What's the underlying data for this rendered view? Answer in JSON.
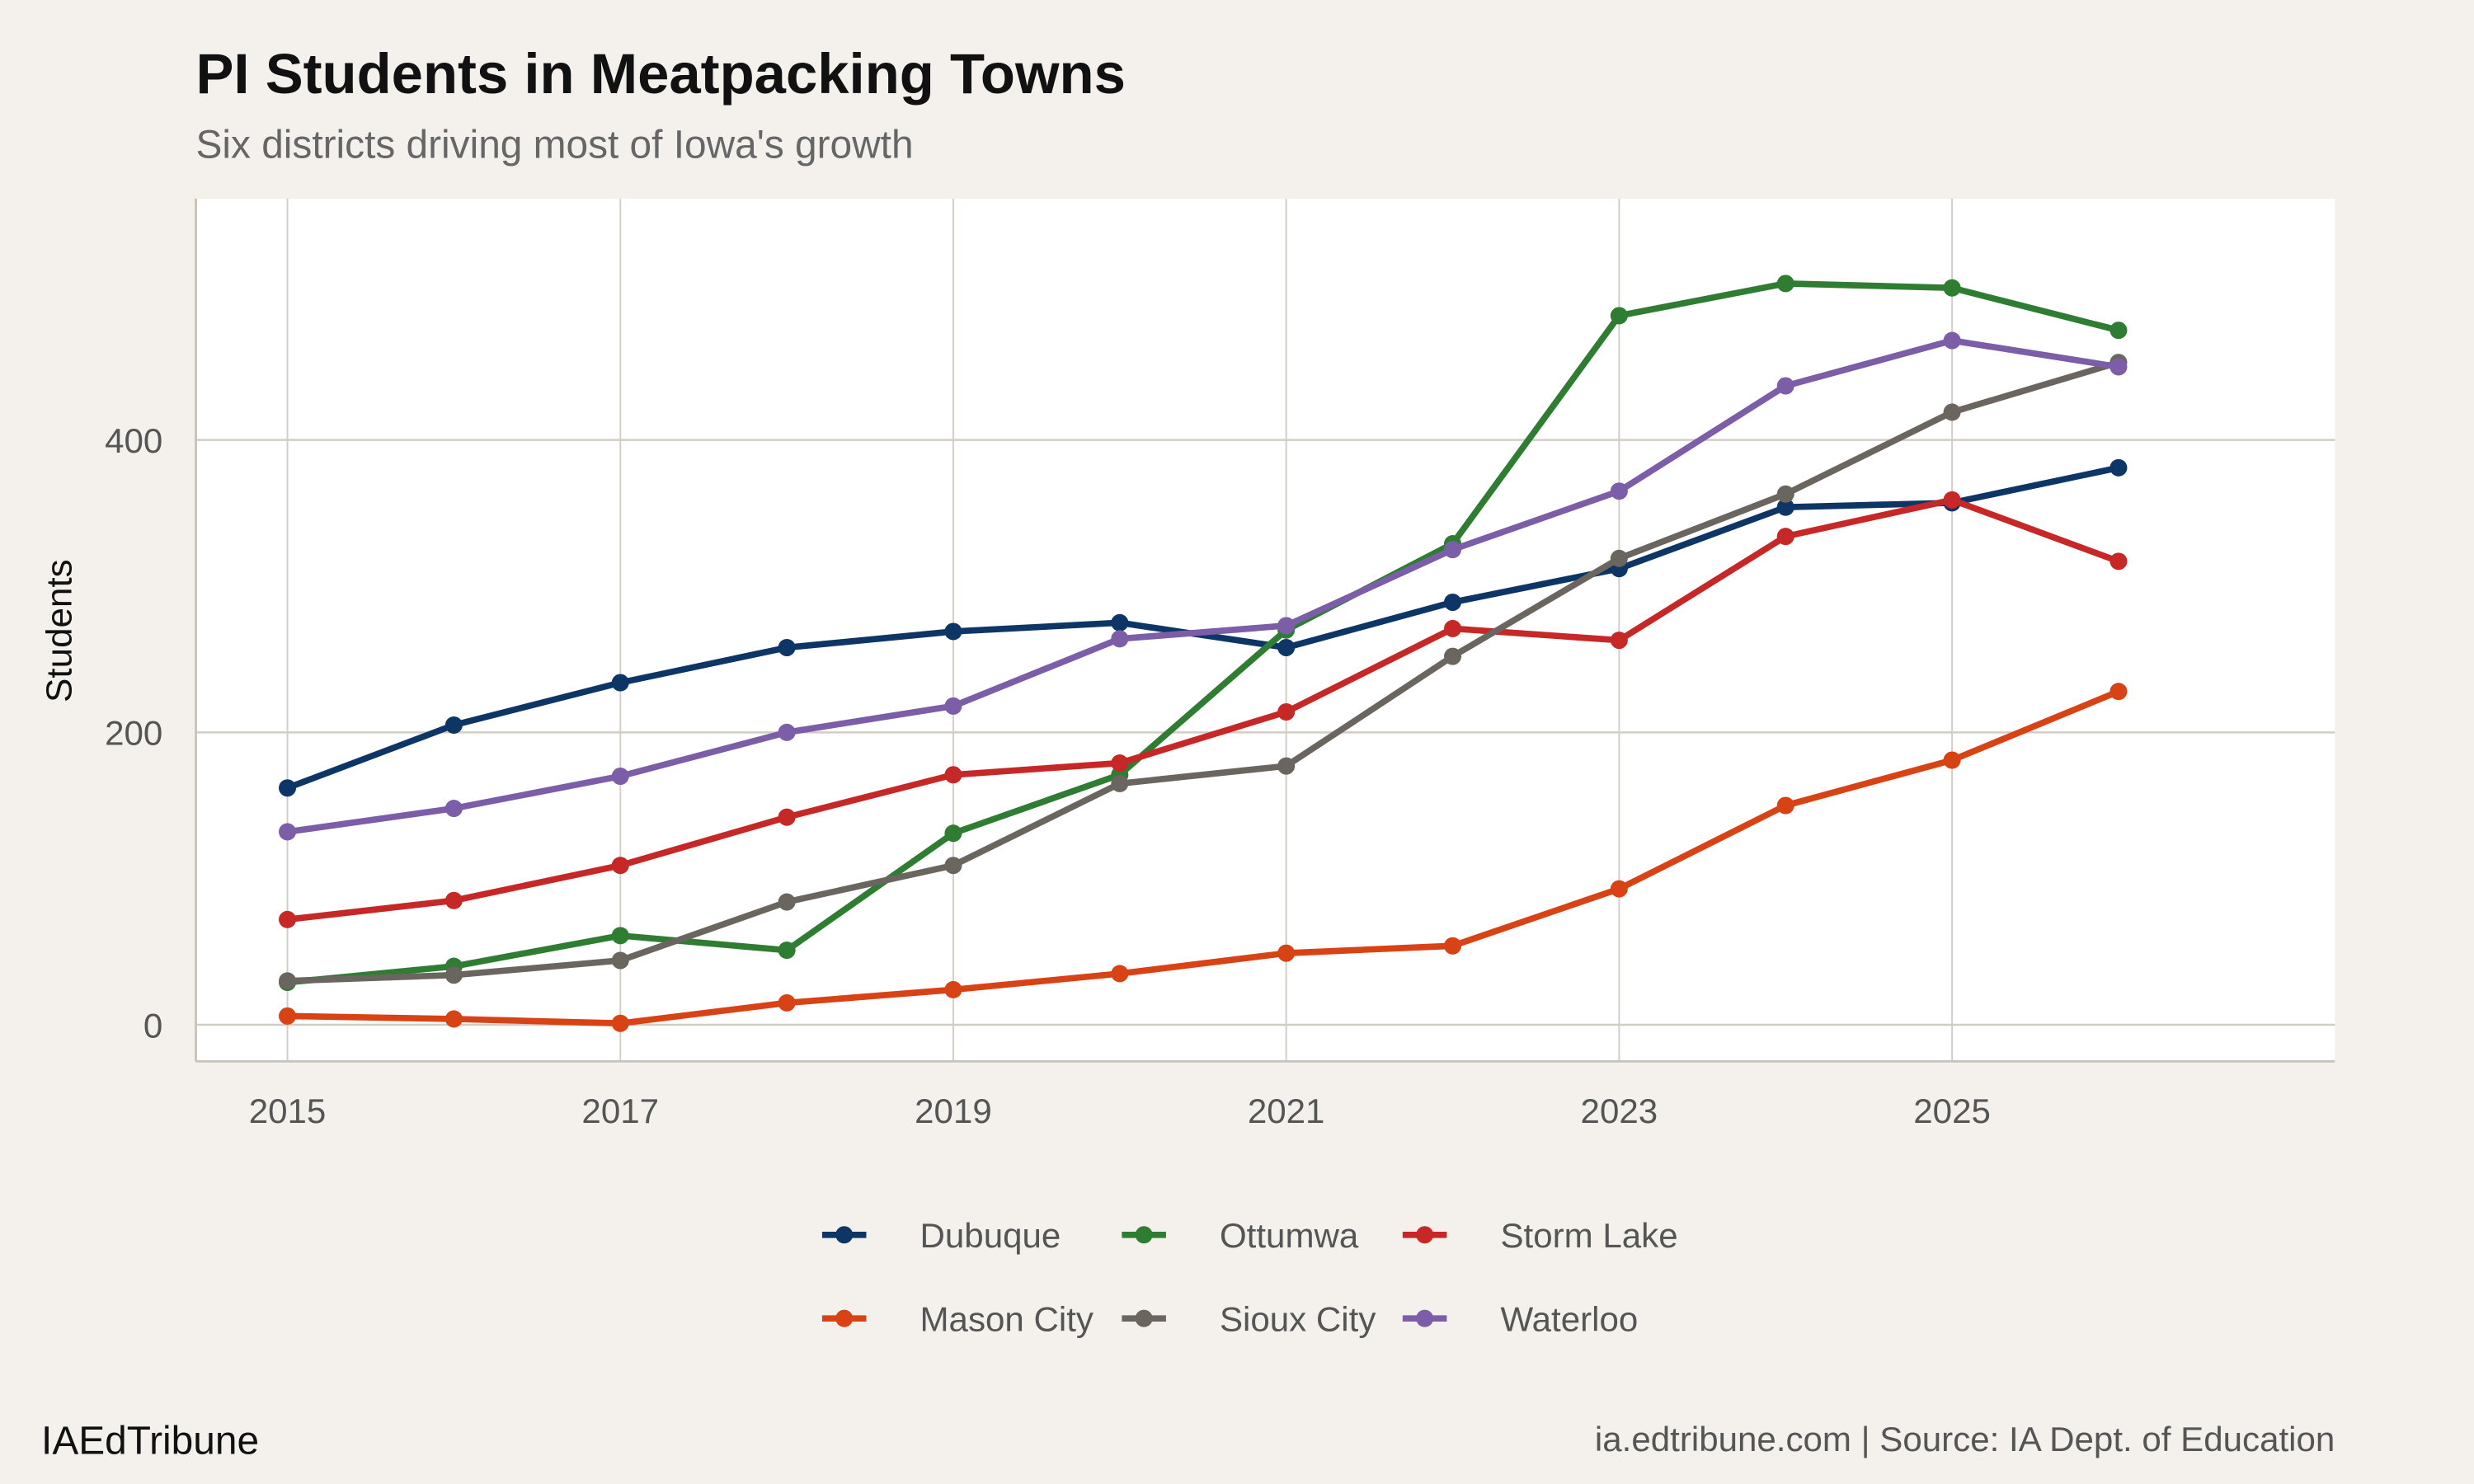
{
  "chart_data": {
    "type": "line",
    "title": "PI Students in Meatpacking Towns",
    "subtitle": "Six districts driving most of Iowa's growth",
    "xlabel": "",
    "ylabel": "Students",
    "x": [
      2015,
      2016,
      2017,
      2018,
      2019,
      2020,
      2021,
      2022,
      2023,
      2024,
      2025,
      2026
    ],
    "x_ticks": [
      "2015",
      "2017",
      "2019",
      "2021",
      "2023",
      "2025"
    ],
    "y_ticks": [
      "0",
      "200",
      "400"
    ],
    "xlim": [
      2014.45,
      2027.3
    ],
    "ylim": [
      -25,
      565
    ],
    "grid": true,
    "legend_position": "bottom",
    "series": [
      {
        "name": "Dubuque",
        "color": "#0d3566",
        "values": [
          162,
          205,
          234,
          258,
          269,
          275,
          258,
          289,
          312,
          354,
          357,
          381
        ]
      },
      {
        "name": "Ottumwa",
        "color": "#2e7d32",
        "values": [
          29,
          40,
          61,
          51,
          131,
          171,
          270,
          329,
          485,
          507,
          504,
          475
        ]
      },
      {
        "name": "Storm Lake",
        "color": "#c62828",
        "values": [
          72,
          85,
          109,
          142,
          171,
          179,
          214,
          271,
          263,
          334,
          359,
          317
        ]
      },
      {
        "name": "Mason City",
        "color": "#d84315",
        "values": [
          6,
          4,
          1,
          15,
          24,
          35,
          49,
          54,
          93,
          150,
          181,
          228
        ]
      },
      {
        "name": "Sioux City",
        "color": "#6b6560",
        "values": [
          30,
          34,
          44,
          84,
          109,
          165,
          177,
          252,
          319,
          363,
          419,
          453
        ]
      },
      {
        "name": "Waterloo",
        "color": "#7b5ea7",
        "values": [
          132,
          148,
          170,
          200,
          218,
          264,
          273,
          325,
          365,
          437,
          468,
          450
        ]
      }
    ]
  },
  "caption": {
    "brand": "IAEdTribune",
    "source": "ia.edtribune.com | Source: IA Dept. of Education"
  }
}
